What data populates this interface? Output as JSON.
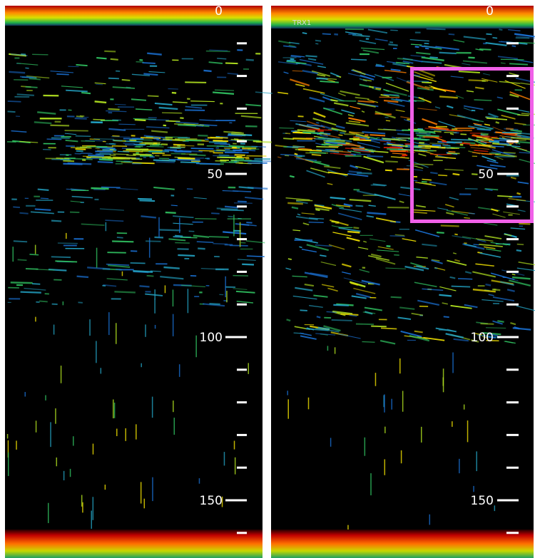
{
  "panels": [
    {
      "depth_labels": [
        0,
        50,
        100,
        150
      ]
    },
    {
      "transducer": "TRX1",
      "depth_labels": [
        0,
        50,
        100,
        150
      ]
    }
  ]
}
